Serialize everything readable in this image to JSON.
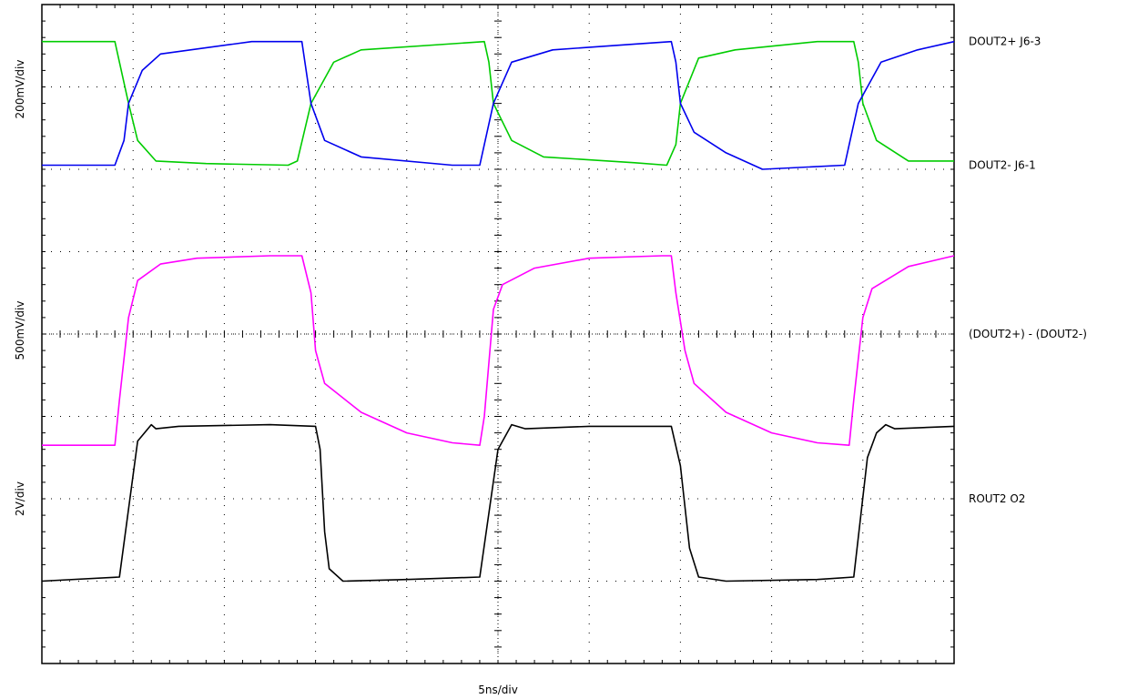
{
  "chart_data": {
    "type": "line",
    "x_axis": {
      "label": "5ns/div",
      "divisions": 10,
      "ns_per_div": 5,
      "xlim": [
        0,
        50
      ]
    },
    "grid": true,
    "panels": [
      {
        "scale_label": "200mV/div",
        "ylim_div": [
          0,
          2
        ],
        "series": [
          {
            "name": "DOUT2+  J6-3",
            "color": "#00cc00",
            "label_div": 1.55,
            "points": [
              [
                0,
                1.55
              ],
              [
                0.8,
                1.55
              ],
              [
                0.85,
                1.3
              ],
              [
                0.95,
                0.8
              ],
              [
                1.05,
                0.35
              ],
              [
                1.25,
                0.1
              ],
              [
                1.8,
                0.07
              ],
              [
                2.7,
                0.05
              ],
              [
                2.8,
                0.1
              ],
              [
                2.95,
                0.8
              ],
              [
                3.2,
                1.3
              ],
              [
                3.5,
                1.45
              ],
              [
                4.85,
                1.55
              ],
              [
                4.9,
                1.3
              ],
              [
                4.95,
                0.8
              ],
              [
                5.15,
                0.35
              ],
              [
                5.5,
                0.15
              ],
              [
                6.5,
                0.08
              ],
              [
                6.85,
                0.05
              ],
              [
                6.95,
                0.3
              ],
              [
                7.0,
                0.8
              ],
              [
                7.2,
                1.35
              ],
              [
                7.6,
                1.45
              ],
              [
                8.5,
                1.55
              ],
              [
                8.9,
                1.55
              ],
              [
                8.95,
                1.3
              ],
              [
                9.0,
                0.8
              ],
              [
                9.15,
                0.35
              ],
              [
                9.5,
                0.1
              ],
              [
                10,
                0.1
              ]
            ]
          },
          {
            "name": "DOUT2-  J6-1",
            "color": "#0000ee",
            "label_div": 0.05,
            "points": [
              [
                0,
                0.05
              ],
              [
                0.8,
                0.05
              ],
              [
                0.9,
                0.35
              ],
              [
                0.95,
                0.8
              ],
              [
                1.1,
                1.2
              ],
              [
                1.3,
                1.4
              ],
              [
                2.3,
                1.55
              ],
              [
                2.85,
                1.55
              ],
              [
                2.95,
                0.8
              ],
              [
                3.1,
                0.35
              ],
              [
                3.5,
                0.15
              ],
              [
                4.5,
                0.05
              ],
              [
                4.8,
                0.05
              ],
              [
                4.85,
                0.3
              ],
              [
                4.95,
                0.8
              ],
              [
                5.15,
                1.3
              ],
              [
                5.6,
                1.45
              ],
              [
                6.5,
                1.52
              ],
              [
                6.9,
                1.55
              ],
              [
                6.95,
                1.3
              ],
              [
                7.0,
                0.8
              ],
              [
                7.15,
                0.45
              ],
              [
                7.5,
                0.2
              ],
              [
                7.9,
                0.0
              ],
              [
                8.8,
                0.05
              ],
              [
                8.85,
                0.3
              ],
              [
                8.95,
                0.8
              ],
              [
                9.2,
                1.3
              ],
              [
                9.6,
                1.45
              ],
              [
                10,
                1.55
              ]
            ]
          }
        ]
      },
      {
        "scale_label": "500mV/div",
        "ylim_div": [
          -2,
          2
        ],
        "series": [
          {
            "name": "(DOUT2+) - (DOUT2-)",
            "color": "#ff00ff",
            "label_div": 0.0,
            "points": [
              [
                0,
                -1.35
              ],
              [
                0.8,
                -1.35
              ],
              [
                0.85,
                -0.8
              ],
              [
                0.95,
                0.2
              ],
              [
                1.05,
                0.65
              ],
              [
                1.3,
                0.85
              ],
              [
                1.7,
                0.92
              ],
              [
                2.5,
                0.95
              ],
              [
                2.85,
                0.95
              ],
              [
                2.95,
                0.5
              ],
              [
                3.0,
                -0.2
              ],
              [
                3.1,
                -0.6
              ],
              [
                3.5,
                -0.95
              ],
              [
                4.0,
                -1.2
              ],
              [
                4.5,
                -1.32
              ],
              [
                4.8,
                -1.35
              ],
              [
                4.85,
                -1.0
              ],
              [
                4.95,
                0.3
              ],
              [
                5.05,
                0.6
              ],
              [
                5.4,
                0.8
              ],
              [
                6.0,
                0.92
              ],
              [
                6.8,
                0.95
              ],
              [
                6.9,
                0.95
              ],
              [
                6.95,
                0.5
              ],
              [
                7.05,
                -0.2
              ],
              [
                7.15,
                -0.6
              ],
              [
                7.5,
                -0.95
              ],
              [
                8.0,
                -1.2
              ],
              [
                8.5,
                -1.32
              ],
              [
                8.85,
                -1.35
              ],
              [
                8.9,
                -0.8
              ],
              [
                9.0,
                0.2
              ],
              [
                9.1,
                0.55
              ],
              [
                9.5,
                0.82
              ],
              [
                10,
                0.95
              ]
            ]
          }
        ]
      },
      {
        "scale_label": "2V/div",
        "ylim_div": [
          -2,
          2
        ],
        "series": [
          {
            "name": "ROUT2   O2",
            "color": "#000000",
            "label_div": 0.0,
            "points": [
              [
                0,
                -1.0
              ],
              [
                0.85,
                -0.95
              ],
              [
                1.05,
                0.7
              ],
              [
                1.2,
                0.9
              ],
              [
                1.25,
                0.85
              ],
              [
                1.5,
                0.88
              ],
              [
                2.5,
                0.9
              ],
              [
                3.0,
                0.88
              ],
              [
                3.05,
                0.6
              ],
              [
                3.1,
                -0.4
              ],
              [
                3.15,
                -0.85
              ],
              [
                3.3,
                -1.0
              ],
              [
                4.0,
                -0.98
              ],
              [
                4.8,
                -0.95
              ],
              [
                5.0,
                0.6
              ],
              [
                5.15,
                0.9
              ],
              [
                5.3,
                0.85
              ],
              [
                6.0,
                0.88
              ],
              [
                6.9,
                0.88
              ],
              [
                7.0,
                0.4
              ],
              [
                7.1,
                -0.6
              ],
              [
                7.2,
                -0.95
              ],
              [
                7.5,
                -1.0
              ],
              [
                8.5,
                -0.98
              ],
              [
                8.9,
                -0.95
              ],
              [
                9.05,
                0.5
              ],
              [
                9.15,
                0.8
              ],
              [
                9.25,
                0.9
              ],
              [
                9.35,
                0.85
              ],
              [
                10,
                0.88
              ]
            ]
          }
        ]
      }
    ]
  }
}
